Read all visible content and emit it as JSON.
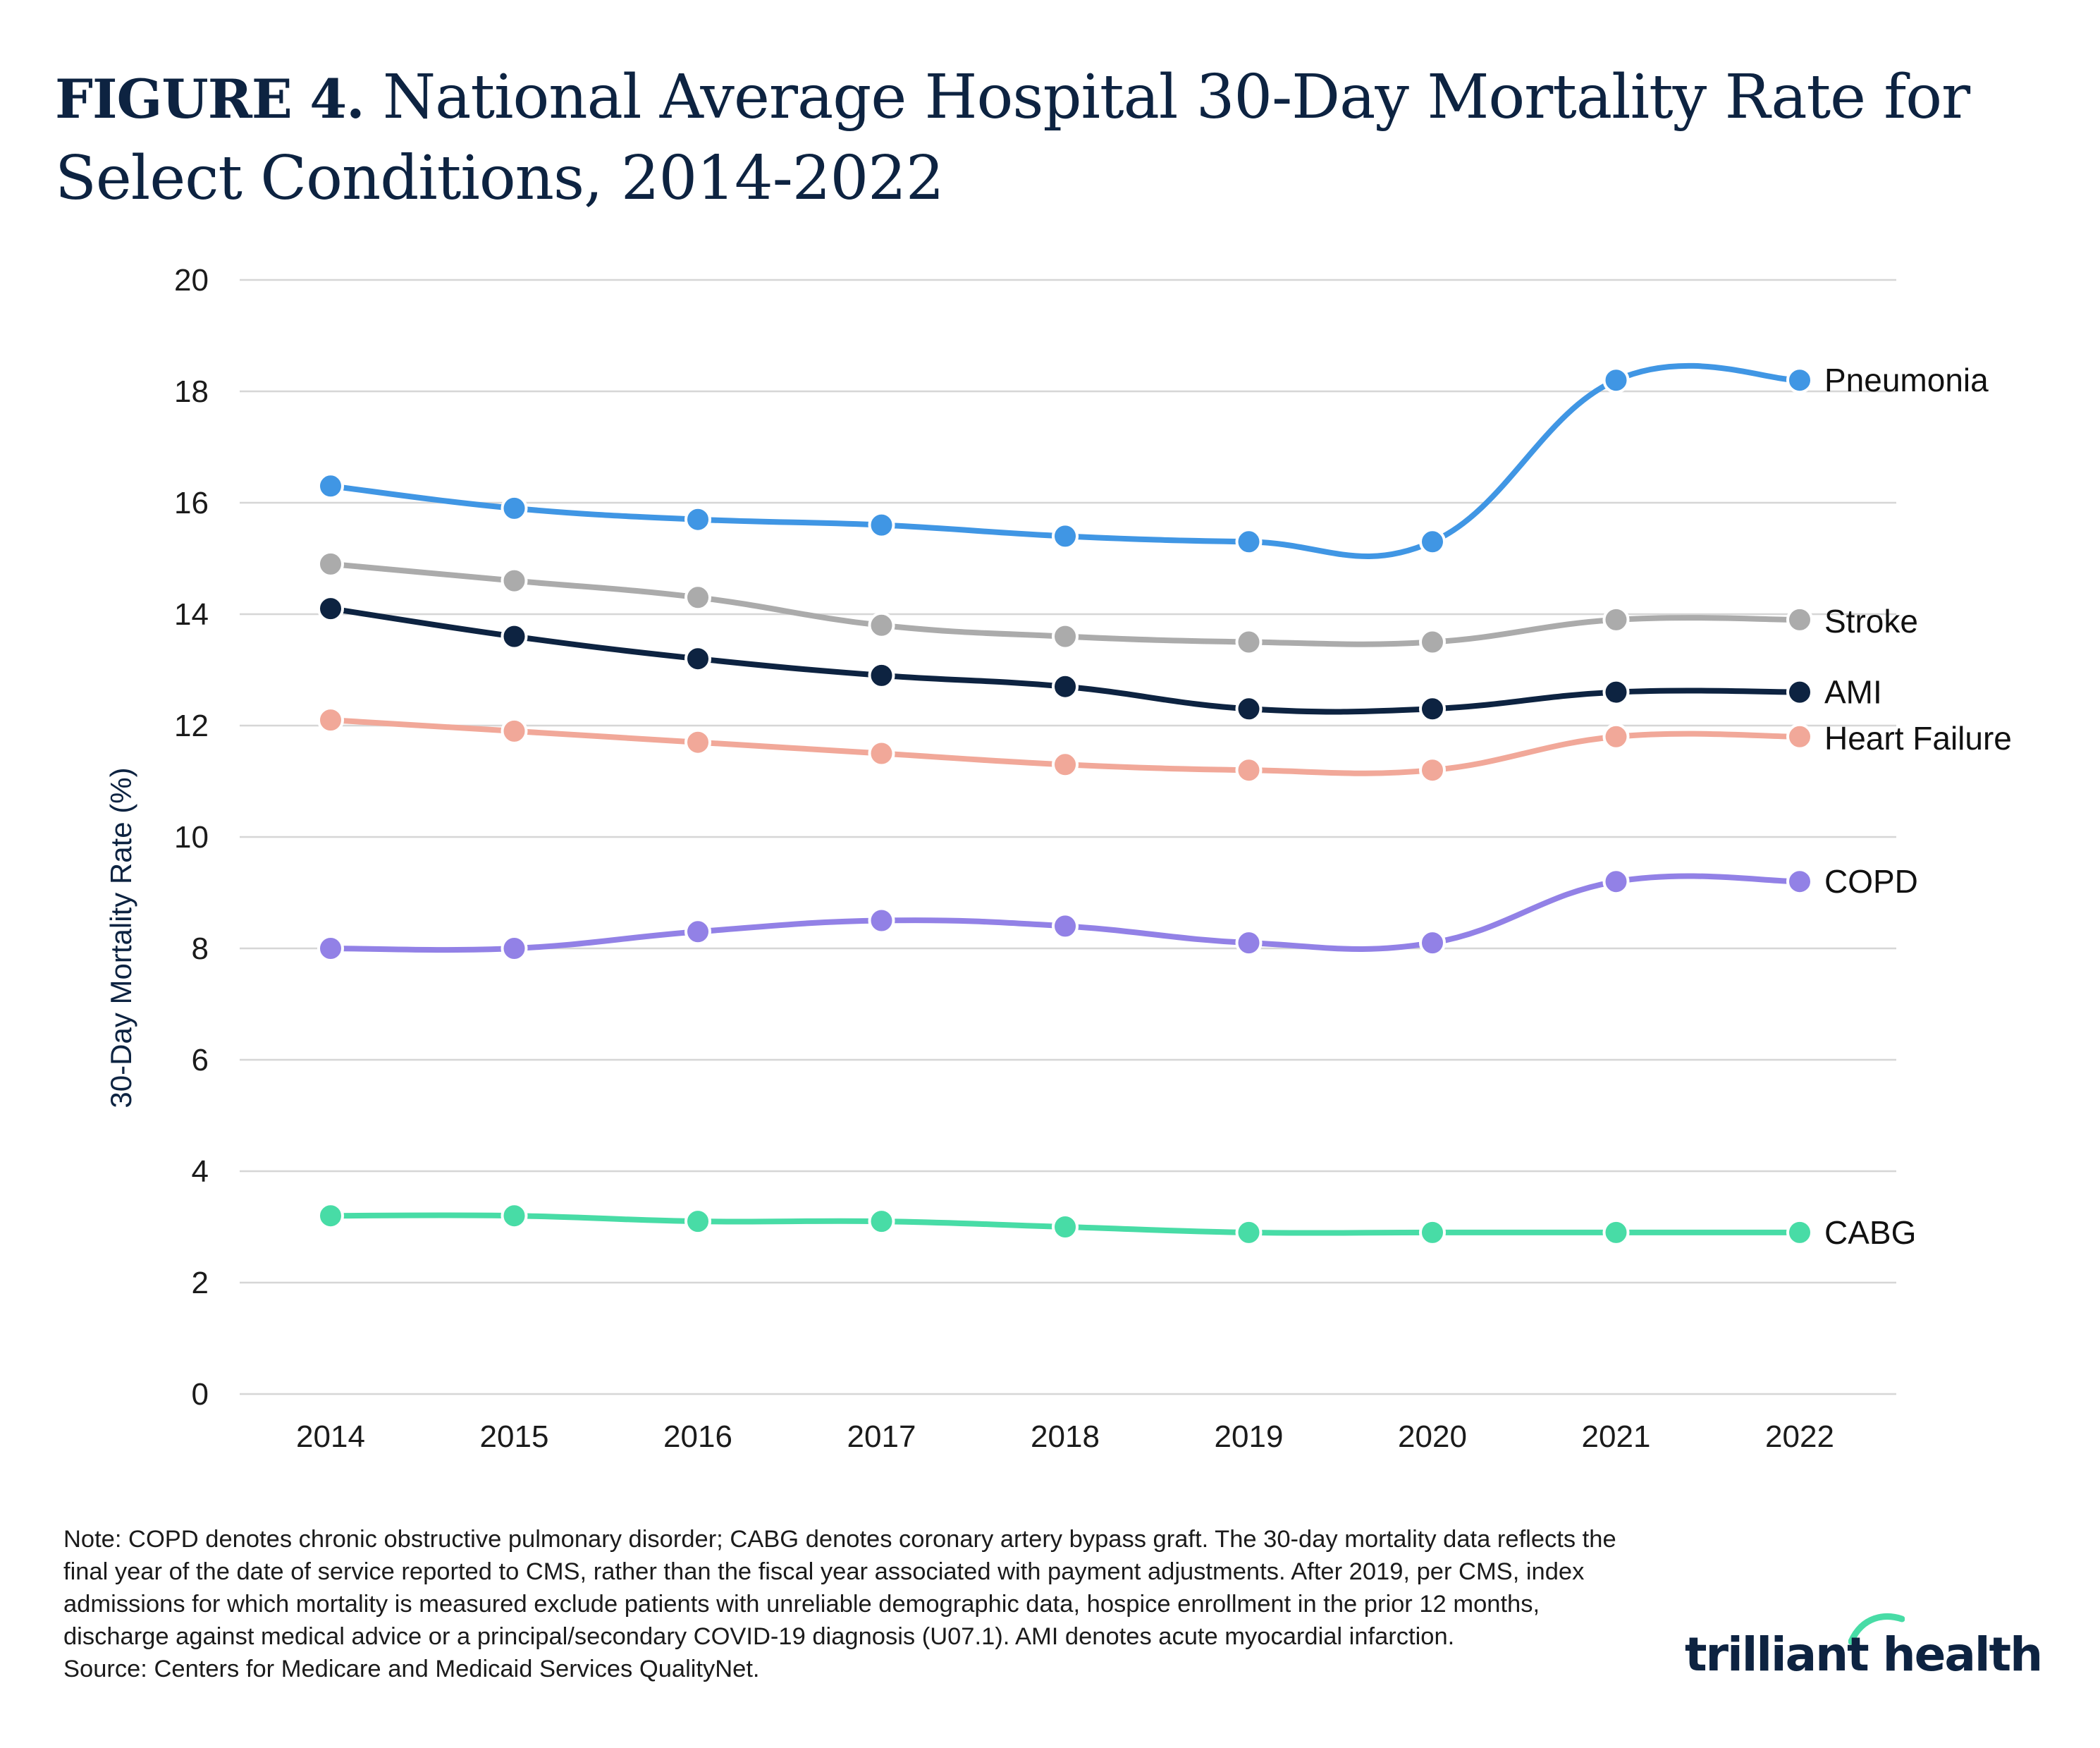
{
  "title": {
    "label": "FIGURE 4.",
    "text": "National Average Hospital 30-Day Mortality Rate for Select Conditions, 2014-2022"
  },
  "chart_data": {
    "type": "line",
    "ylabel": "30-Day Mortality Rate (%)",
    "xlabel": "",
    "ylim": [
      0,
      20
    ],
    "yticks": [
      0,
      2,
      4,
      6,
      8,
      10,
      12,
      14,
      16,
      18,
      20
    ],
    "grid": "horizontal",
    "legend": "direct labels at right end of lines",
    "categories": [
      "2014",
      "2015",
      "2016",
      "2017",
      "2018",
      "2019",
      "2020",
      "2021",
      "2022"
    ],
    "series": [
      {
        "name": "Pneumonia",
        "color": "#4096e4",
        "values": [
          16.3,
          15.9,
          15.7,
          15.6,
          15.4,
          15.3,
          15.3,
          18.2,
          18.2
        ]
      },
      {
        "name": "Stroke",
        "color": "#ababab",
        "values": [
          14.9,
          14.6,
          14.3,
          13.8,
          13.6,
          13.5,
          13.5,
          13.9,
          13.9
        ]
      },
      {
        "name": "AMI",
        "color": "#0d2341",
        "values": [
          14.1,
          13.6,
          13.2,
          12.9,
          12.7,
          12.3,
          12.3,
          12.6,
          12.6
        ]
      },
      {
        "name": "Heart Failure",
        "color": "#f1a899",
        "values": [
          12.1,
          11.9,
          11.7,
          11.5,
          11.3,
          11.2,
          11.2,
          11.8,
          11.8
        ]
      },
      {
        "name": "COPD",
        "color": "#9281e6",
        "values": [
          8.0,
          8.0,
          8.3,
          8.5,
          8.4,
          8.1,
          8.1,
          9.2,
          9.2
        ]
      },
      {
        "name": "CABG",
        "color": "#48dca6",
        "values": [
          3.2,
          3.2,
          3.1,
          3.1,
          3.0,
          2.9,
          2.9,
          2.9,
          2.9
        ]
      }
    ]
  },
  "notes": {
    "note": "Note: COPD denotes chronic obstructive pulmonary disorder; CABG denotes coronary artery bypass graft. The 30-day mortality data reflects the final year of the date of service reported to CMS, rather than the fiscal year associated with payment adjustments. After 2019, per CMS, index admissions for which mortality is measured exclude patients with unreliable demographic data, hospice enrollment in the prior 12 months, discharge against medical advice or a principal/secondary COVID-19 diagnosis (U07.1). AMI denotes acute myocardial infarction.",
    "source": "Source: Centers for Medicare and Medicaid Services QualityNet."
  },
  "logo": {
    "text": "trilliant health",
    "mark_color": "#48dca6"
  }
}
